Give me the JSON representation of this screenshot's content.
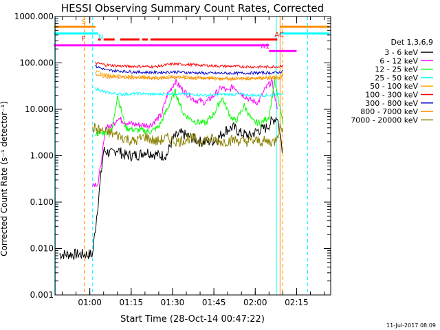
{
  "chart_data": {
    "type": "line",
    "title": "HESSI Observing Summary Count Rates, Corrected",
    "xlabel": "Start Time (28-Oct-14 00:47:22)",
    "ylabel": "Corrected Count Rate (s⁻¹ detector⁻¹)",
    "y_scale": "log",
    "ylim": [
      0.001,
      1000
    ],
    "xlim": [
      "00:47:22",
      "02:27:22"
    ],
    "yticks": [
      "1000.000",
      "100.000",
      "10.000",
      "1.000",
      "0.100",
      "0.010",
      "0.001"
    ],
    "xticks": [
      "01:00",
      "01:15",
      "01:30",
      "01:45",
      "02:00",
      "02:15"
    ],
    "footer": "11-Jul-2017 08:09",
    "legend_title": "Det 1,3,6,9",
    "legend_position": "right",
    "series": [
      {
        "name": "3 - 6 keV",
        "color": "#000000",
        "x": [
          "00:49",
          "01:01",
          "01:05",
          "01:08",
          "01:10",
          "01:12",
          "01:15",
          "01:18",
          "01:20",
          "01:23",
          "01:26",
          "01:28",
          "01:30",
          "01:33",
          "01:36",
          "01:40",
          "01:43",
          "01:46",
          "01:49",
          "01:52",
          "01:55",
          "01:58",
          "02:01",
          "02:04",
          "02:06",
          "02:08",
          "02:10"
        ],
        "y": [
          0.0075,
          0.0075,
          1.3,
          1.1,
          1.4,
          1.05,
          1.0,
          1.05,
          1.25,
          1.1,
          1.0,
          1.05,
          2.3,
          3.0,
          2.6,
          2.0,
          2.0,
          2.2,
          3.5,
          4.1,
          3.0,
          2.7,
          3.5,
          4.0,
          5.5,
          7.0,
          1.2
        ]
      },
      {
        "name": "6 - 12 keV",
        "color": "#ff00ff",
        "x": [
          "01:01",
          "01:03",
          "01:06",
          "01:08",
          "01:10",
          "01:14",
          "01:18",
          "01:22",
          "01:26",
          "01:28",
          "01:31",
          "01:34",
          "01:38",
          "01:42",
          "01:45",
          "01:48",
          "01:50",
          "01:52",
          "01:55",
          "01:58",
          "02:01",
          "02:04",
          "02:06",
          "02:08"
        ],
        "y": [
          0.25,
          0.25,
          4.5,
          4.2,
          6.5,
          5.0,
          4.6,
          4.6,
          7.5,
          20,
          40,
          25,
          16,
          14,
          20,
          30,
          24,
          32,
          22,
          16,
          14,
          30,
          40,
          10
        ]
      },
      {
        "name": "12 - 25 keV",
        "color": "#00ff00",
        "x": [
          "01:02",
          "01:05",
          "01:08",
          "01:10",
          "01:13",
          "01:16",
          "01:19",
          "01:22",
          "01:25",
          "01:28",
          "01:31",
          "01:34",
          "01:38",
          "01:42",
          "01:45",
          "01:48",
          "01:51",
          "01:53",
          "01:56",
          "01:59",
          "02:02",
          "02:05",
          "02:07",
          "02:09",
          "02:10"
        ],
        "y": [
          3.0,
          3.1,
          3.5,
          20,
          4.0,
          3.6,
          3.5,
          3.3,
          4.2,
          10,
          24,
          8,
          5.5,
          5.0,
          8,
          18,
          7,
          5.5,
          12,
          5.5,
          5.0,
          7,
          40,
          10,
          5
        ]
      },
      {
        "name": "25 - 50 keV",
        "color": "#00ffff",
        "x": [
          "01:02",
          "01:06",
          "01:12",
          "01:18",
          "01:24",
          "01:30",
          "01:36",
          "01:42",
          "01:48",
          "01:54",
          "02:00",
          "02:05",
          "02:08",
          "02:10"
        ],
        "y": [
          28,
          23,
          21,
          22,
          21,
          22,
          21,
          20,
          21,
          21,
          20,
          20,
          22,
          22
        ]
      },
      {
        "name": "50 - 100 keV",
        "color": "#ffa500",
        "x": [
          "01:02",
          "01:06",
          "01:12",
          "01:18",
          "01:24",
          "01:30",
          "01:36",
          "01:42",
          "01:48",
          "01:54",
          "02:00",
          "02:05",
          "02:09",
          "02:10"
        ],
        "y": [
          65,
          55,
          52,
          50,
          49,
          51,
          50,
          48,
          47,
          47,
          48,
          49,
          50,
          54
        ]
      },
      {
        "name": "100 - 300 keV",
        "color": "#ff0000",
        "x": [
          "01:02",
          "01:06",
          "01:12",
          "01:18",
          "01:24",
          "01:30",
          "01:36",
          "01:42",
          "01:48",
          "01:54",
          "02:00",
          "02:05",
          "02:09",
          "02:10"
        ],
        "y": [
          100,
          90,
          85,
          84,
          83,
          95,
          92,
          88,
          85,
          84,
          82,
          82,
          84,
          92
        ]
      },
      {
        "name": "300 - 800 keV",
        "color": "#0000c8",
        "x": [
          "01:02",
          "01:06",
          "01:12",
          "01:18",
          "01:24",
          "01:30",
          "01:36",
          "01:42",
          "01:48",
          "01:54",
          "02:00",
          "02:05",
          "02:09",
          "02:10"
        ],
        "y": [
          85,
          70,
          66,
          63,
          62,
          64,
          62,
          60,
          60,
          60,
          61,
          61,
          62,
          70
        ]
      },
      {
        "name": "800 - 7000 keV",
        "color": "#ff8c00",
        "x": [
          "01:02",
          "01:06",
          "01:12",
          "01:18",
          "01:24",
          "01:30",
          "01:36",
          "01:42",
          "01:48",
          "01:54",
          "02:00",
          "02:05",
          "02:09",
          "02:10"
        ],
        "y": [
          55,
          50,
          48,
          47,
          46,
          48,
          47,
          46,
          45,
          45,
          46,
          46,
          47,
          50
        ]
      },
      {
        "name": "7000 - 20000 keV",
        "color": "#8b8000",
        "x": [
          "01:01",
          "01:04",
          "01:08",
          "01:12",
          "01:16",
          "01:20",
          "01:24",
          "01:28",
          "01:32",
          "01:36",
          "01:40",
          "01:44",
          "01:48",
          "01:52",
          "01:56",
          "02:00",
          "02:04",
          "02:07",
          "02:09",
          "02:10"
        ],
        "y": [
          4.0,
          3.5,
          3.0,
          2.5,
          2.0,
          2.6,
          2.0,
          2.4,
          2.0,
          2.4,
          2.1,
          2.3,
          2.0,
          2.2,
          2.0,
          2.1,
          2.0,
          2.0,
          4.0,
          4.0
        ]
      }
    ],
    "flags": [
      {
        "label": "S",
        "color": "#ff8c00",
        "y": 600,
        "segments": [
          [
            "00:47",
            "01:02"
          ],
          [
            "02:09",
            "02:27"
          ]
        ]
      },
      {
        "label": "N",
        "color": "#00ffff",
        "y": 430,
        "segments": [
          [
            "00:47",
            "01:03"
          ],
          [
            "02:09",
            "02:27"
          ]
        ]
      },
      {
        "label": "F",
        "color": "#ff0000",
        "y": 320,
        "segments": [
          [
            "01:03",
            "01:04"
          ],
          [
            "01:05",
            "01:09"
          ],
          [
            "01:11",
            "01:18"
          ],
          [
            "01:19",
            "01:21"
          ],
          [
            "01:22",
            "02:08"
          ]
        ]
      },
      {
        "label": "AC",
        "color": "#ff0000",
        "y": 320,
        "segments": []
      },
      {
        "label": "",
        "color": "#ff00ff",
        "y": 240,
        "segments": [
          [
            "00:47",
            "02:05"
          ]
        ]
      },
      {
        "label": "A1",
        "color": "#ff00ff",
        "y": 180,
        "segments": [
          [
            "02:05",
            "02:15"
          ]
        ]
      }
    ],
    "vlines": [
      {
        "t": "00:47:30",
        "color": "#00ffff",
        "style": "solid"
      },
      {
        "t": "00:58",
        "color": "#ff8c00",
        "style": "dashed"
      },
      {
        "t": "01:01",
        "color": "#00ffff",
        "style": "dashed"
      },
      {
        "t": "02:07:40",
        "color": "#00ffff",
        "style": "solid"
      },
      {
        "t": "02:09",
        "color": "#ff8c00",
        "style": "solid"
      },
      {
        "t": "02:10",
        "color": "#ff8c00",
        "style": "dashed"
      },
      {
        "t": "02:19",
        "color": "#00ffff",
        "style": "dashed"
      }
    ]
  }
}
